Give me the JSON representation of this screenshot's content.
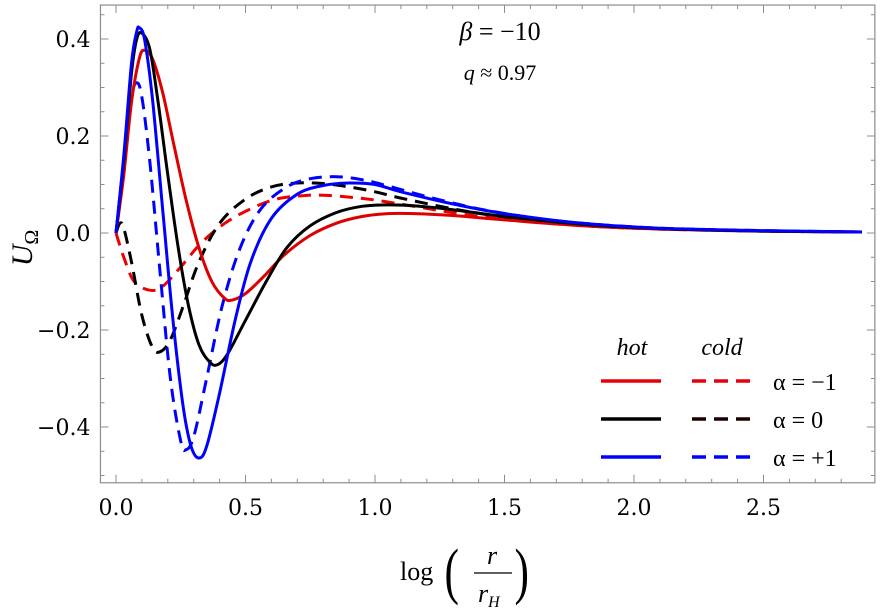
{
  "chart_data": {
    "type": "line",
    "title": "",
    "annotations": [
      {
        "text_parts": [
          "β",
          " = −10"
        ],
        "label": "beta = -10",
        "x": 0.875,
        "y": 0.41
      },
      {
        "text_parts": [
          "q",
          " ≈ 0.97"
        ],
        "label": "q ≈ 0.97",
        "x": 0.875,
        "y": 0.33
      }
    ],
    "xlabel": "log(r / r_H)",
    "xlabel_parts": {
      "fn": "log",
      "num": "r",
      "den": "r",
      "den_sub": "H"
    },
    "ylabel": "U_Ω",
    "ylabel_parts": {
      "main": "U",
      "sub": "Ω"
    },
    "xlim": [
      -0.06,
      2.93
    ],
    "ylim": [
      -0.515,
      0.47
    ],
    "xticks": [
      0.0,
      0.5,
      1.0,
      1.5,
      2.0,
      2.5
    ],
    "xtick_labels": [
      "0.0",
      "0.5",
      "1.0",
      "1.5",
      "2.0",
      "2.5"
    ],
    "yticks": [
      -0.4,
      -0.2,
      0.0,
      0.2,
      0.4
    ],
    "ytick_labels": [
      "−0.4",
      "−0.2",
      "0.0",
      "0.2",
      "0.4"
    ],
    "grid": false,
    "legend": {
      "position": "lower right",
      "column_headers": [
        "hot",
        "cold"
      ],
      "rows": [
        {
          "label": "α = −1",
          "color_hot": "#e8000b",
          "color_cold": "#e8000b"
        },
        {
          "label": "α = 0",
          "color_hot": "#000000",
          "color_cold": "#1a0000"
        },
        {
          "label": "α = +1",
          "color_hot": "#0000ff",
          "color_cold": "#0000ff"
        }
      ]
    },
    "series": [
      {
        "name": "hot, α = −1",
        "style": "solid",
        "color": "#dd0000",
        "x": [
          0,
          0.03,
          0.06,
          0.09,
          0.11,
          0.14,
          0.18,
          0.22,
          0.27,
          0.32,
          0.37,
          0.42,
          0.45,
          0.5,
          0.57,
          0.65,
          0.75,
          0.85,
          0.95,
          1.05,
          1.15,
          1.3,
          1.5,
          1.8,
          2.1,
          2.5,
          2.88
        ],
        "y": [
          0,
          0.12,
          0.27,
          0.36,
          0.377,
          0.36,
          0.29,
          0.19,
          0.07,
          -0.03,
          -0.1,
          -0.135,
          -0.138,
          -0.125,
          -0.09,
          -0.045,
          -0.005,
          0.02,
          0.034,
          0.04,
          0.04,
          0.036,
          0.027,
          0.015,
          0.008,
          0.004,
          0.002
        ]
      },
      {
        "name": "hot, α = 0",
        "style": "solid",
        "color": "#000000",
        "x": [
          0,
          0.03,
          0.06,
          0.08,
          0.1,
          0.13,
          0.16,
          0.2,
          0.24,
          0.28,
          0.32,
          0.36,
          0.39,
          0.43,
          0.5,
          0.58,
          0.66,
          0.75,
          0.85,
          0.95,
          1.05,
          1.15,
          1.3,
          1.5,
          1.8,
          2.1,
          2.5,
          2.88
        ],
        "y": [
          0,
          0.15,
          0.33,
          0.4,
          0.412,
          0.38,
          0.28,
          0.12,
          -0.03,
          -0.15,
          -0.23,
          -0.265,
          -0.272,
          -0.25,
          -0.18,
          -0.1,
          -0.03,
          0.015,
          0.042,
          0.055,
          0.058,
          0.056,
          0.048,
          0.034,
          0.018,
          0.009,
          0.004,
          0.002
        ]
      },
      {
        "name": "hot, α = +1",
        "style": "solid",
        "color": "#0000ff",
        "x": [
          0,
          0.03,
          0.06,
          0.08,
          0.09,
          0.11,
          0.14,
          0.18,
          0.22,
          0.26,
          0.29,
          0.32,
          0.35,
          0.4,
          0.46,
          0.52,
          0.6,
          0.7,
          0.8,
          0.9,
          1.0,
          1.1,
          1.3,
          1.5,
          1.8,
          2.1,
          2.5,
          2.88
        ],
        "y": [
          0,
          0.16,
          0.35,
          0.415,
          0.423,
          0.4,
          0.28,
          0.05,
          -0.18,
          -0.36,
          -0.44,
          -0.464,
          -0.44,
          -0.33,
          -0.18,
          -0.06,
          0.03,
          0.08,
          0.098,
          0.103,
          0.1,
          0.085,
          0.06,
          0.04,
          0.02,
          0.01,
          0.005,
          0.002
        ]
      },
      {
        "name": "cold, α = −1",
        "style": "dashed",
        "color": "#ee0000",
        "x": [
          0,
          0.03,
          0.07,
          0.13,
          0.18,
          0.25,
          0.33,
          0.42,
          0.52,
          0.62,
          0.72,
          0.8,
          0.9,
          1.0,
          1.15,
          1.3,
          1.5,
          1.8,
          2.1,
          2.5,
          2.88
        ],
        "y": [
          0,
          -0.05,
          -0.1,
          -0.118,
          -0.11,
          -0.07,
          -0.02,
          0.02,
          0.05,
          0.07,
          0.077,
          0.078,
          0.074,
          0.068,
          0.055,
          0.042,
          0.028,
          0.015,
          0.008,
          0.004,
          0.002
        ]
      },
      {
        "name": "cold, α = 0",
        "style": "dashed",
        "color": "#000000",
        "x": [
          0,
          0.015,
          0.03,
          0.06,
          0.1,
          0.14,
          0.17,
          0.21,
          0.26,
          0.32,
          0.4,
          0.5,
          0.6,
          0.7,
          0.8,
          0.9,
          1.0,
          1.1,
          1.3,
          1.5,
          1.8,
          2.1,
          2.5,
          2.88
        ],
        "y": [
          0,
          0.02,
          0.01,
          -0.06,
          -0.17,
          -0.235,
          -0.245,
          -0.22,
          -0.15,
          -0.06,
          0.02,
          0.07,
          0.095,
          0.103,
          0.102,
          0.095,
          0.085,
          0.072,
          0.05,
          0.033,
          0.017,
          0.009,
          0.004,
          0.002
        ]
      },
      {
        "name": "cold, α = +1",
        "style": "dashed",
        "color": "#0000ff",
        "x": [
          0,
          0.03,
          0.06,
          0.08,
          0.1,
          0.13,
          0.17,
          0.21,
          0.25,
          0.27,
          0.3,
          0.35,
          0.41,
          0.48,
          0.56,
          0.66,
          0.75,
          0.85,
          0.95,
          1.05,
          1.2,
          1.4,
          1.6,
          1.8,
          2.1,
          2.5,
          2.88
        ],
        "y": [
          0,
          0.15,
          0.28,
          0.31,
          0.28,
          0.15,
          -0.08,
          -0.3,
          -0.43,
          -0.447,
          -0.42,
          -0.3,
          -0.15,
          -0.03,
          0.05,
          0.095,
          0.112,
          0.116,
          0.11,
          0.097,
          0.075,
          0.05,
          0.032,
          0.02,
          0.01,
          0.005,
          0.002
        ]
      }
    ]
  }
}
